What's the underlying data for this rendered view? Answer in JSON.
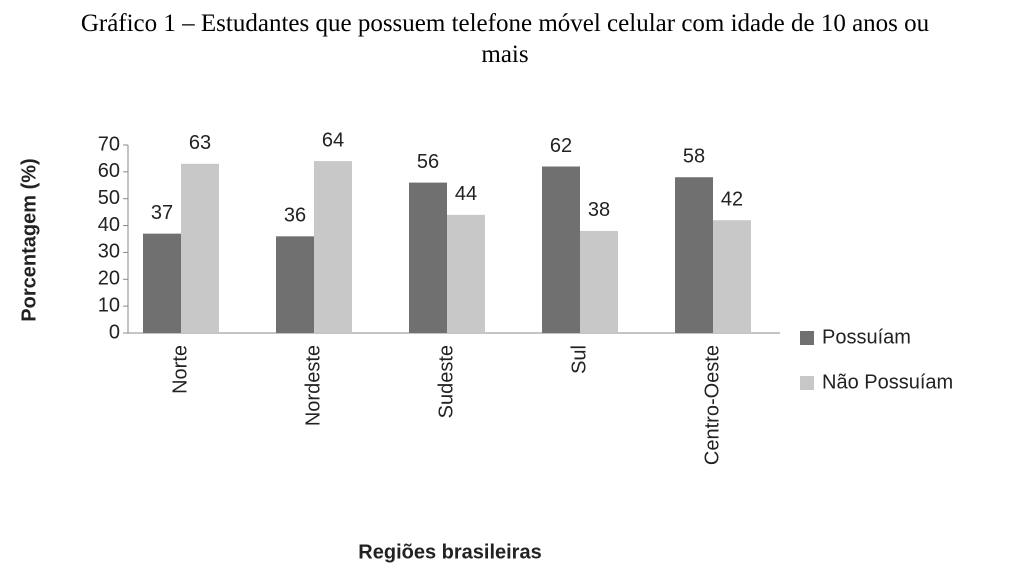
{
  "chart_data": {
    "type": "bar",
    "title": "Gráfico 1 – Estudantes que possuem telefone móvel celular com idade de 10 anos ou mais",
    "categories": [
      "Norte",
      "Nordeste",
      "Sudeste",
      "Sul",
      "Centro-Oeste"
    ],
    "series": [
      {
        "name": "Possuíam",
        "color": "#707070",
        "values": [
          37,
          36,
          56,
          62,
          58
        ]
      },
      {
        "name": "Não Possuíam",
        "color": "#c8c8c8",
        "values": [
          63,
          64,
          44,
          38,
          42
        ]
      }
    ],
    "x_label": "Regiões brasileiras",
    "y_label": "Porcentagem (%)",
    "ylim": [
      0,
      70
    ],
    "yticks": [
      0,
      10,
      20,
      30,
      40,
      50,
      60,
      70
    ],
    "legend": "right",
    "grid": false
  }
}
